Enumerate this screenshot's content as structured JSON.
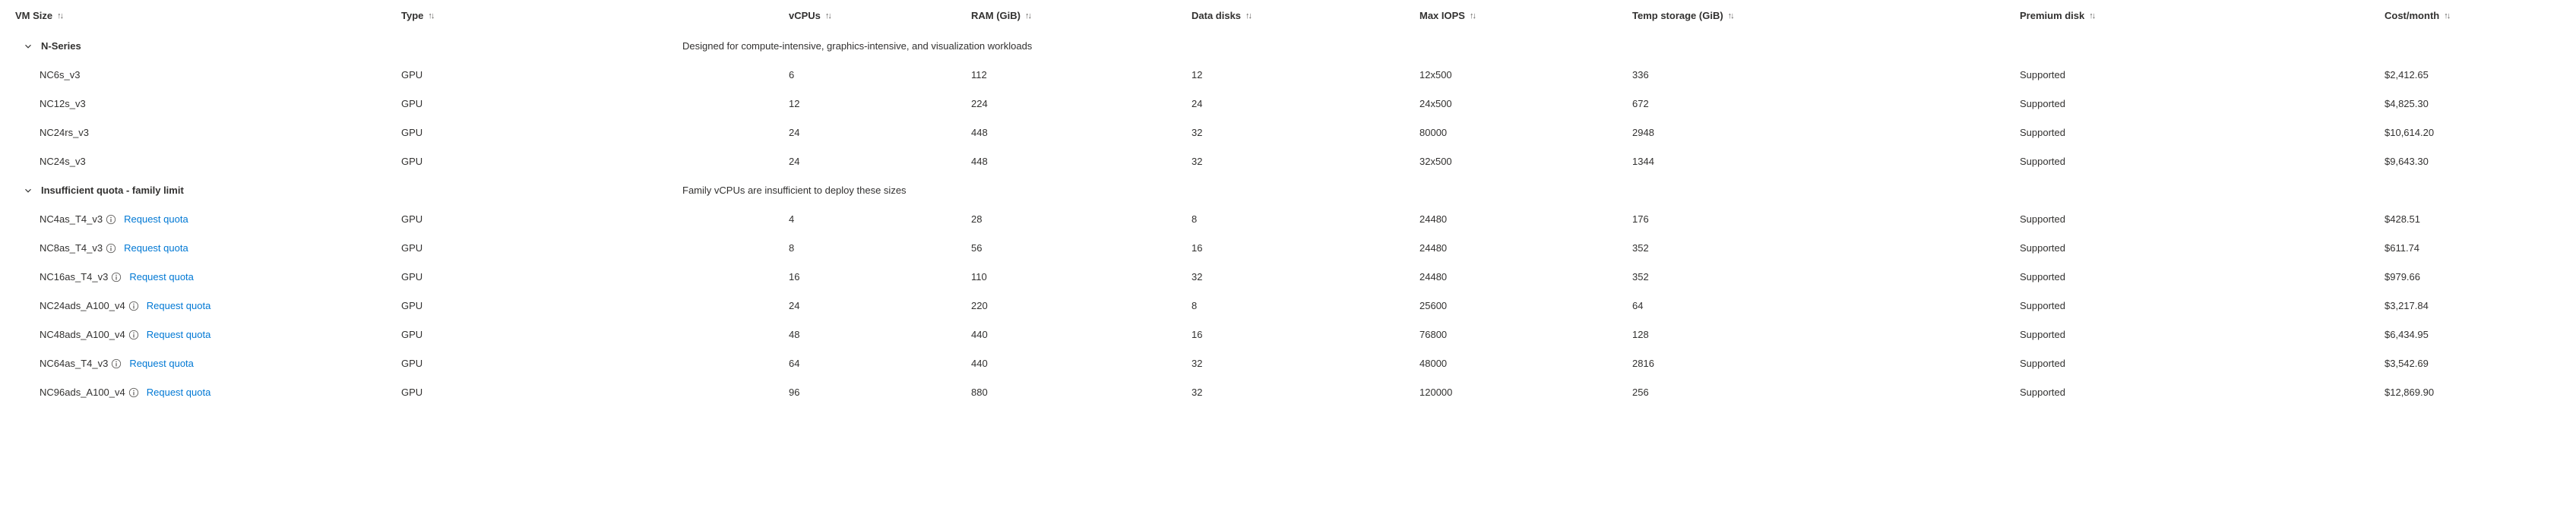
{
  "columns": {
    "vmsize": "VM Size",
    "type": "Type",
    "vcpus": "vCPUs",
    "ram": "RAM (GiB)",
    "disks": "Data disks",
    "iops": "Max IOPS",
    "temp": "Temp storage (GiB)",
    "premium": "Premium disk",
    "cost": "Cost/month"
  },
  "sort_glyph": "↑↓",
  "request_quota_label": "Request quota",
  "groups": [
    {
      "name": "N-Series",
      "description": "Designed for compute-intensive, graphics-intensive, and visualization workloads",
      "rows": [
        {
          "vmsize": "NC6s_v3",
          "type": "GPU",
          "vcpus": "6",
          "ram": "112",
          "disks": "12",
          "iops": "12x500",
          "temp": "336",
          "premium": "Supported",
          "cost": "$2,412.65",
          "info": false
        },
        {
          "vmsize": "NC12s_v3",
          "type": "GPU",
          "vcpus": "12",
          "ram": "224",
          "disks": "24",
          "iops": "24x500",
          "temp": "672",
          "premium": "Supported",
          "cost": "$4,825.30",
          "info": false
        },
        {
          "vmsize": "NC24rs_v3",
          "type": "GPU",
          "vcpus": "24",
          "ram": "448",
          "disks": "32",
          "iops": "80000",
          "temp": "2948",
          "premium": "Supported",
          "cost": "$10,614.20",
          "info": false
        },
        {
          "vmsize": "NC24s_v3",
          "type": "GPU",
          "vcpus": "24",
          "ram": "448",
          "disks": "32",
          "iops": "32x500",
          "temp": "1344",
          "premium": "Supported",
          "cost": "$9,643.30",
          "info": false
        }
      ]
    },
    {
      "name": "Insufficient quota - family limit",
      "description": "Family vCPUs are insufficient to deploy these sizes",
      "rows": [
        {
          "vmsize": "NC4as_T4_v3",
          "type": "GPU",
          "vcpus": "4",
          "ram": "28",
          "disks": "8",
          "iops": "24480",
          "temp": "176",
          "premium": "Supported",
          "cost": "$428.51",
          "info": true,
          "quota": true
        },
        {
          "vmsize": "NC8as_T4_v3",
          "type": "GPU",
          "vcpus": "8",
          "ram": "56",
          "disks": "16",
          "iops": "24480",
          "temp": "352",
          "premium": "Supported",
          "cost": "$611.74",
          "info": true,
          "quota": true
        },
        {
          "vmsize": "NC16as_T4_v3",
          "type": "GPU",
          "vcpus": "16",
          "ram": "110",
          "disks": "32",
          "iops": "24480",
          "temp": "352",
          "premium": "Supported",
          "cost": "$979.66",
          "info": true,
          "quota": true
        },
        {
          "vmsize": "NC24ads_A100_v4",
          "type": "GPU",
          "vcpus": "24",
          "ram": "220",
          "disks": "8",
          "iops": "25600",
          "temp": "64",
          "premium": "Supported",
          "cost": "$3,217.84",
          "info": true,
          "quota": true
        },
        {
          "vmsize": "NC48ads_A100_v4",
          "type": "GPU",
          "vcpus": "48",
          "ram": "440",
          "disks": "16",
          "iops": "76800",
          "temp": "128",
          "premium": "Supported",
          "cost": "$6,434.95",
          "info": true,
          "quota": true
        },
        {
          "vmsize": "NC64as_T4_v3",
          "type": "GPU",
          "vcpus": "64",
          "ram": "440",
          "disks": "32",
          "iops": "48000",
          "temp": "2816",
          "premium": "Supported",
          "cost": "$3,542.69",
          "info": true,
          "quota": true
        },
        {
          "vmsize": "NC96ads_A100_v4",
          "type": "GPU",
          "vcpus": "96",
          "ram": "880",
          "disks": "32",
          "iops": "120000",
          "temp": "256",
          "premium": "Supported",
          "cost": "$12,869.90",
          "info": true,
          "quota": true
        }
      ]
    }
  ],
  "colors": {
    "text": "#323130",
    "link": "#0078d4",
    "muted": "#605e5c",
    "bg": "#ffffff"
  }
}
